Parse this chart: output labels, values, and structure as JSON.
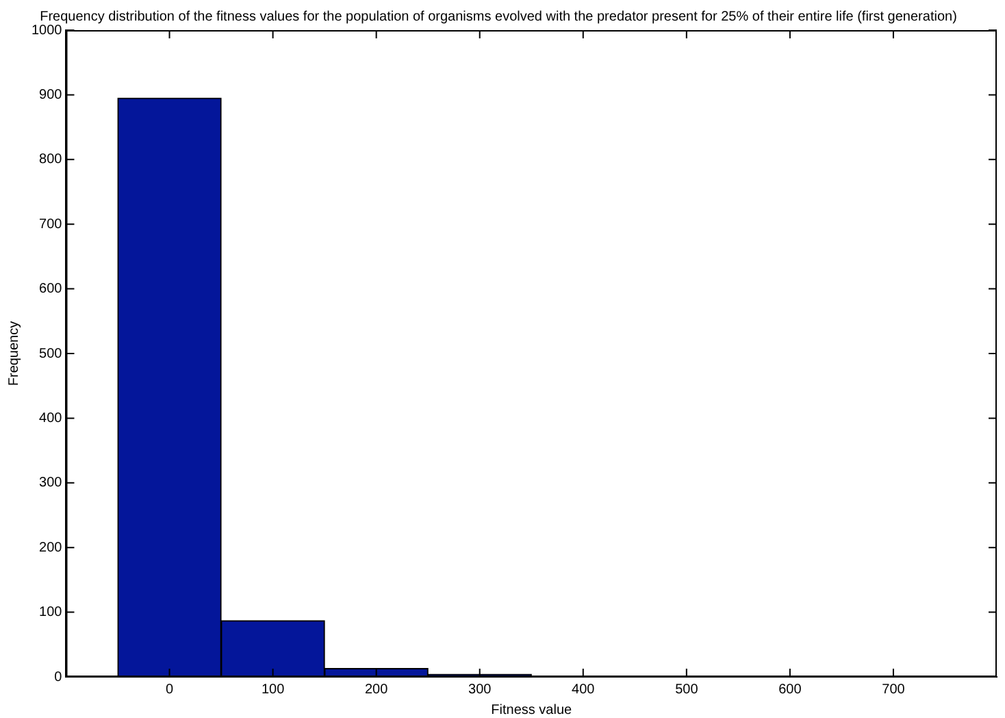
{
  "chart_data": {
    "type": "histogram",
    "title": "Frequency distribution of the fitness values for the population of organisms evolved with the predator present for 25% of their entire life (first generation)",
    "xlabel": "Fitness value",
    "ylabel": "Frequency",
    "bins": [
      -50,
      50,
      150,
      250,
      350,
      450,
      550,
      650,
      750
    ],
    "values": [
      895,
      87,
      13,
      4,
      0,
      1,
      0,
      0
    ],
    "color": "#04169a",
    "xlim": [
      -100,
      800
    ],
    "xticks": [
      0,
      100,
      200,
      300,
      400,
      500,
      600,
      700
    ],
    "ylim": [
      0,
      1000
    ],
    "yticks": [
      0,
      100,
      200,
      300,
      400,
      500,
      600,
      700,
      800,
      900,
      1000
    ],
    "grid": false,
    "legend": false
  }
}
